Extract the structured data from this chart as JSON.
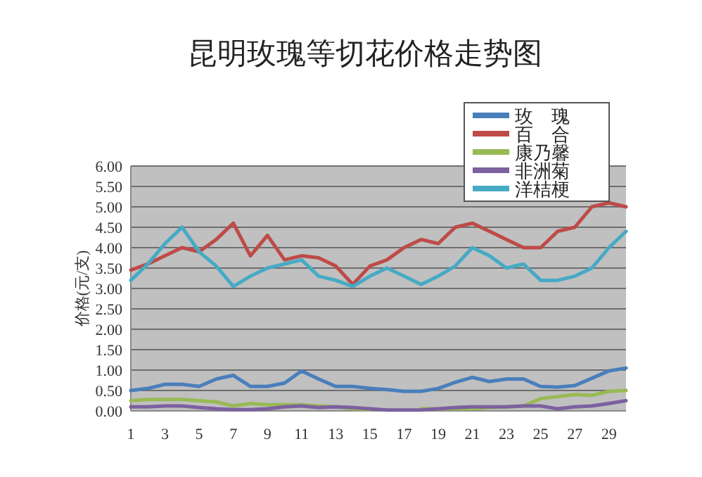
{
  "chart_data": {
    "type": "line",
    "title": "昆明玫瑰等切花价格走势图",
    "ylabel": "价格(元/支)",
    "x": [
      1,
      2,
      3,
      4,
      5,
      6,
      7,
      8,
      9,
      10,
      11,
      12,
      13,
      14,
      15,
      16,
      17,
      18,
      19,
      20,
      21,
      22,
      23,
      24,
      25,
      26,
      27,
      28,
      29,
      30
    ],
    "xlim": [
      1,
      30
    ],
    "xticks": [
      1,
      3,
      5,
      7,
      9,
      11,
      13,
      15,
      17,
      19,
      21,
      23,
      25,
      27,
      29
    ],
    "ylim": [
      0,
      6
    ],
    "yticks": [
      {
        "value": 0,
        "label": "0.00"
      },
      {
        "value": 0.5,
        "label": "0.50"
      },
      {
        "value": 1,
        "label": "1.00"
      },
      {
        "value": 1.5,
        "label": "1.50"
      },
      {
        "value": 2,
        "label": "2.00"
      },
      {
        "value": 2.5,
        "label": "2.50"
      },
      {
        "value": 3,
        "label": "3.00"
      },
      {
        "value": 3.5,
        "label": "3.50"
      },
      {
        "value": 4,
        "label": "4.00"
      },
      {
        "value": 4.5,
        "label": "4.50"
      },
      {
        "value": 5,
        "label": "5.00"
      },
      {
        "value": 5.5,
        "label": "5.50"
      },
      {
        "value": 6,
        "label": "6.00"
      }
    ],
    "grid": "y",
    "legend": "top right",
    "marker": "none",
    "line_style": "solid",
    "series": [
      {
        "name": "玫　瑰",
        "color": "#4a7ebb",
        "values": [
          0.5,
          0.55,
          0.65,
          0.65,
          0.6,
          0.78,
          0.87,
          0.6,
          0.6,
          0.68,
          0.98,
          0.78,
          0.6,
          0.6,
          0.55,
          0.52,
          0.48,
          0.48,
          0.55,
          0.7,
          0.82,
          0.72,
          0.78,
          0.78,
          0.6,
          0.58,
          0.62,
          0.8,
          0.98,
          1.05
        ]
      },
      {
        "name": "百　合",
        "color": "#be4b48",
        "values": [
          3.45,
          3.6,
          3.8,
          4.0,
          3.9,
          4.2,
          4.6,
          3.8,
          4.3,
          3.7,
          3.8,
          3.75,
          3.55,
          3.1,
          3.55,
          3.7,
          4.0,
          4.2,
          4.1,
          4.5,
          4.6,
          4.4,
          4.2,
          4.0,
          4.0,
          4.4,
          4.5,
          5.0,
          5.1,
          5.0
        ]
      },
      {
        "name": "康乃馨",
        "color": "#98b954",
        "values": [
          0.25,
          0.28,
          0.28,
          0.28,
          0.25,
          0.22,
          0.12,
          0.18,
          0.15,
          0.15,
          0.15,
          0.12,
          0.1,
          0.05,
          0.03,
          null,
          null,
          0.05,
          0.05,
          0.05,
          0.05,
          0.08,
          0.1,
          0.12,
          0.3,
          0.35,
          0.4,
          0.38,
          0.48,
          0.5
        ]
      },
      {
        "name": "非洲菊",
        "color": "#7d60a0",
        "values": [
          0.1,
          0.1,
          0.12,
          0.12,
          0.08,
          0.05,
          0.03,
          0.03,
          0.05,
          0.1,
          0.12,
          0.08,
          0.1,
          0.08,
          0.05,
          0.02,
          0.02,
          0.02,
          0.05,
          0.08,
          0.1,
          0.1,
          0.1,
          0.12,
          0.12,
          0.05,
          0.1,
          0.12,
          0.18,
          0.25
        ]
      },
      {
        "name": "洋桔梗",
        "color": "#46aac5",
        "values": [
          3.2,
          3.6,
          4.1,
          4.5,
          3.9,
          3.55,
          3.05,
          3.3,
          3.5,
          3.6,
          3.7,
          3.3,
          3.2,
          3.05,
          3.3,
          3.5,
          3.3,
          3.1,
          3.3,
          3.55,
          4.0,
          3.8,
          3.5,
          3.6,
          3.2,
          3.2,
          3.3,
          3.5,
          4.0,
          4.4
        ]
      }
    ]
  }
}
